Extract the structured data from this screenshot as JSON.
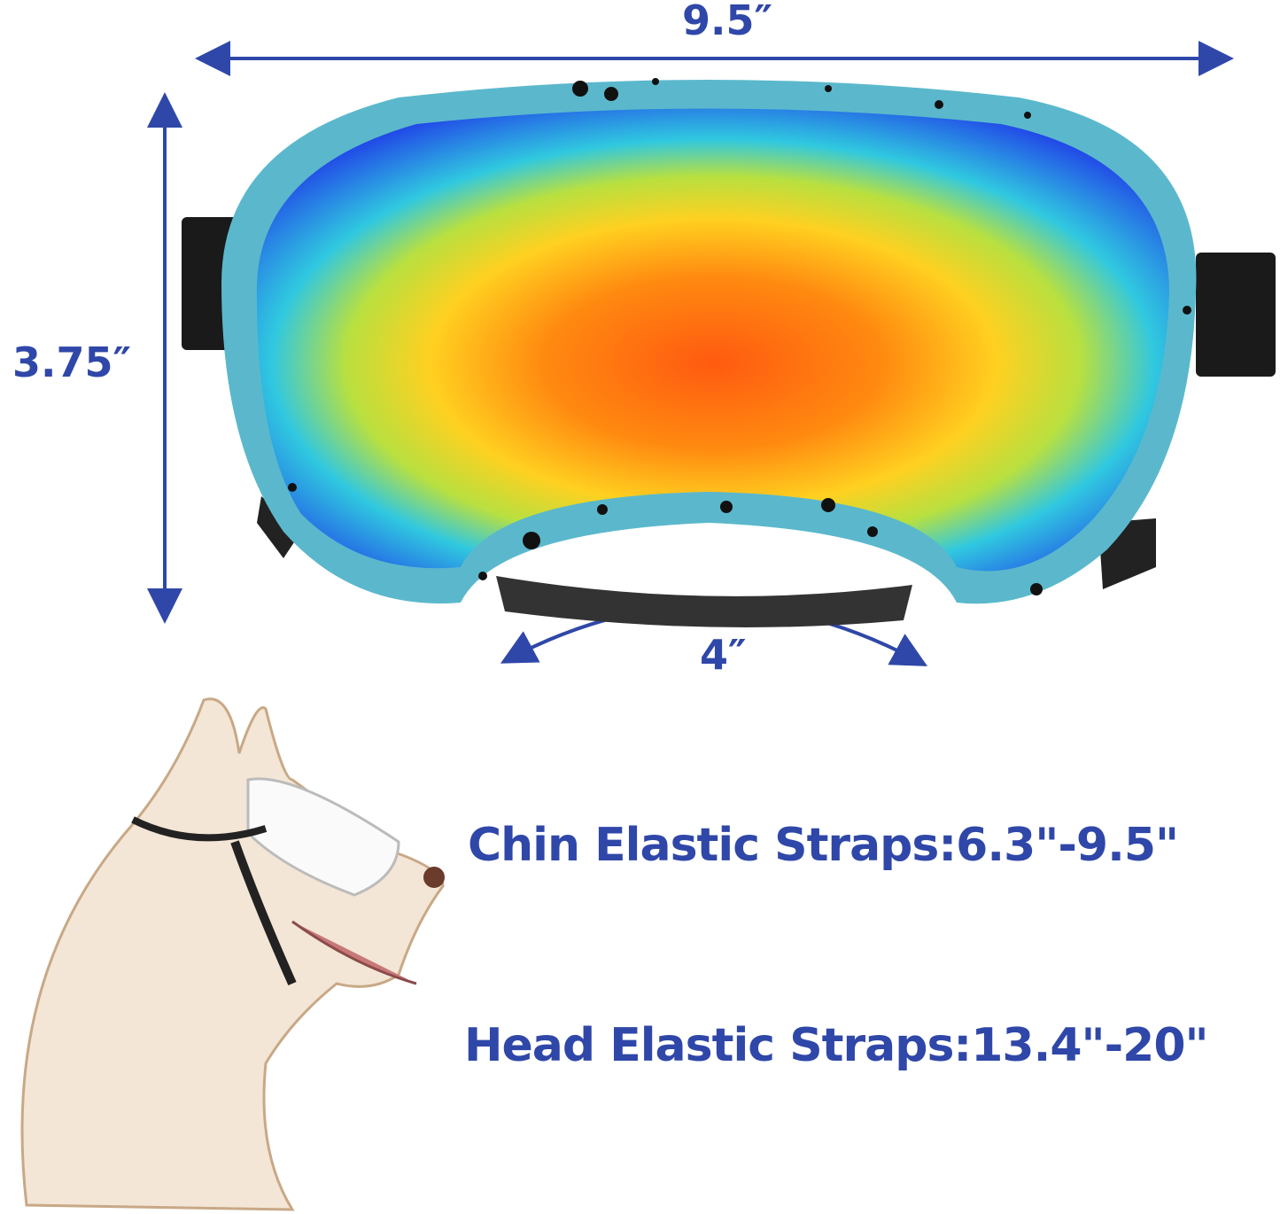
{
  "colors": {
    "accent": "#2f47a8",
    "frame": "#5bb8cc",
    "strap": "#1a1a1a"
  },
  "dimensions": {
    "width": "9.5″",
    "height": "3.75″",
    "nose_bridge": "4″"
  },
  "straps": {
    "chin": "Chin Elastic Straps:6.3\"-9.5\"",
    "head": "Head Elastic Straps:13.4\"-20\""
  }
}
